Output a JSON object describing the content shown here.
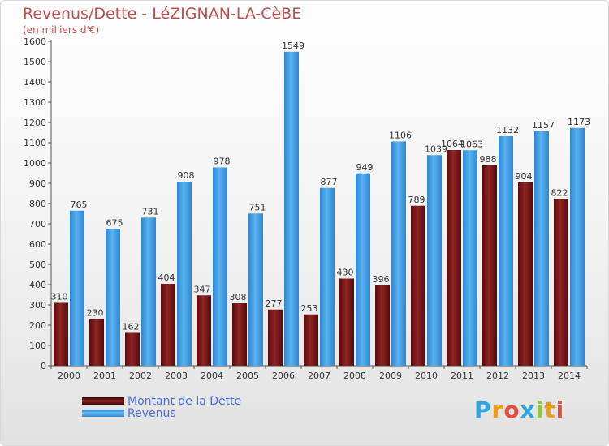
{
  "header": {
    "title": "Revenus/Dette - LéZIGNAN-LA-CèBE",
    "subtitle": "(en milliers d'€)"
  },
  "legend": {
    "items": [
      {
        "label": "Montant de la Dette",
        "color": "#7a1515"
      },
      {
        "label": "Revenus",
        "color": "#3b95e0"
      }
    ]
  },
  "logo": {
    "text": "Proxiti",
    "letters": [
      {
        "ch": "P",
        "color": "#2aa7df"
      },
      {
        "ch": "r",
        "color": "#f39c12"
      },
      {
        "ch": "o",
        "color": "#e74c3c"
      },
      {
        "ch": "x",
        "color": "#2aa7df"
      },
      {
        "ch": "i",
        "color": "#8dc63f"
      },
      {
        "ch": "t",
        "color": "#f39c12"
      },
      {
        "ch": "i",
        "color": "#e74c3c"
      }
    ]
  },
  "chart_data": {
    "type": "bar",
    "title": "Revenus/Dette - LéZIGNAN-LA-CèBE",
    "subtitle": "(en milliers d'€)",
    "categories": [
      "2000",
      "2001",
      "2002",
      "2003",
      "2004",
      "2005",
      "2006",
      "2007",
      "2008",
      "2009",
      "2010",
      "2011",
      "2012",
      "2013",
      "2014"
    ],
    "series": [
      {
        "name": "Montant de la Dette",
        "color": "#7a1515",
        "values": [
          310,
          230,
          162,
          404,
          347,
          308,
          277,
          253,
          430,
          396,
          789,
          1064,
          988,
          904,
          822
        ]
      },
      {
        "name": "Revenus",
        "color": "#3b95e0",
        "values": [
          765,
          675,
          731,
          908,
          978,
          751,
          1549,
          877,
          949,
          1106,
          1039,
          1063,
          1132,
          1157,
          1173
        ]
      }
    ],
    "ylim": [
      0,
      1600
    ],
    "yticks": [
      0,
      100,
      200,
      300,
      400,
      500,
      600,
      700,
      800,
      900,
      1000,
      1100,
      1200,
      1300,
      1400,
      1500,
      1600
    ],
    "grid": false,
    "legend_position": "bottom-left"
  }
}
